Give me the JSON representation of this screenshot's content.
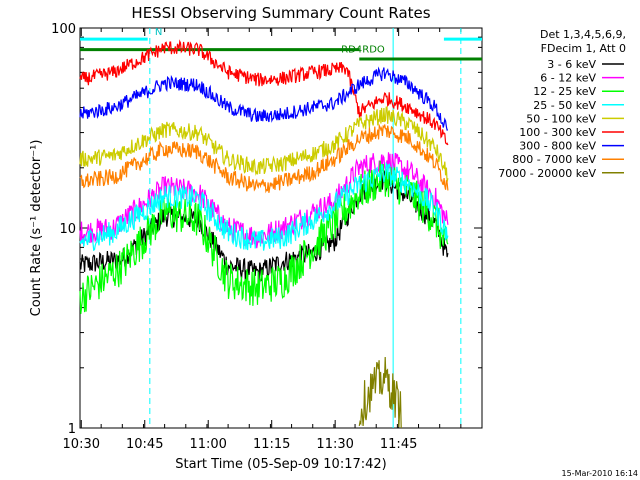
{
  "chart_data": {
    "type": "line",
    "title": "HESSI Observing Summary Count Rates",
    "xlabel": "Start Time (05-Sep-09 10:17:42)",
    "ylabel": "Count Rate (s⁻¹ detector⁻¹)",
    "y_scale": "log",
    "ylim": [
      1,
      100
    ],
    "xlim_minutes": [
      0,
      95
    ],
    "y_tick_labels": [
      "1",
      "10",
      "100"
    ],
    "x_tick_labels": [
      "10:30",
      "10:45",
      "11:00",
      "11:15",
      "11:30",
      "11:45"
    ],
    "x_tick_minutes": [
      30,
      45,
      60,
      75,
      90,
      105
    ],
    "legend": {
      "position": "right",
      "header": [
        "Det 1,3,4,5,6,9,",
        "FDecim 1, Att 0"
      ],
      "entries": [
        {
          "label": "3 - 6 keV",
          "color": "#000000"
        },
        {
          "label": "6 - 12 keV",
          "color": "#ff00ff"
        },
        {
          "label": "12 - 25 keV",
          "color": "#00ff00"
        },
        {
          "label": "25 - 50 keV",
          "color": "#00ffff"
        },
        {
          "label": "50 - 100 keV",
          "color": "#cccc00"
        },
        {
          "label": "100 - 300 keV",
          "color": "#ff0000"
        },
        {
          "label": "300 - 800 keV",
          "color": "#0000ff"
        },
        {
          "label": "800 - 7000 keV",
          "color": "#ff8000"
        },
        {
          "label": "7000 - 20000 keV",
          "color": "#808000"
        }
      ]
    },
    "series": [
      {
        "name": "3 - 6 keV",
        "color": "#000000",
        "noise": 0.45,
        "points": [
          [
            0,
            6.5
          ],
          [
            10,
            7.0
          ],
          [
            20,
            11.5
          ],
          [
            28,
            11.0
          ],
          [
            35,
            6.5
          ],
          [
            42,
            6.0
          ],
          [
            48,
            6.8
          ],
          [
            55,
            7.5
          ],
          [
            60,
            8.5
          ],
          [
            66,
            15.0
          ],
          [
            72,
            17.5
          ],
          [
            78,
            14.0
          ],
          [
            84,
            10.5
          ],
          [
            87,
            7.0
          ]
        ]
      },
      {
        "name": "6 - 12 keV",
        "color": "#ff00ff",
        "noise": 0.5,
        "points": [
          [
            0,
            9.5
          ],
          [
            8,
            10.0
          ],
          [
            20,
            16.0
          ],
          [
            28,
            15.0
          ],
          [
            35,
            10.0
          ],
          [
            42,
            9.0
          ],
          [
            48,
            10.0
          ],
          [
            55,
            12.0
          ],
          [
            60,
            13.5
          ],
          [
            66,
            20.0
          ],
          [
            72,
            22.0
          ],
          [
            78,
            19.0
          ],
          [
            84,
            14.0
          ],
          [
            87,
            10.5
          ]
        ]
      },
      {
        "name": "12 - 25 keV",
        "color": "#00ff00",
        "noise": 0.8,
        "points": [
          [
            0,
            4.5
          ],
          [
            10,
            6.5
          ],
          [
            20,
            12.0
          ],
          [
            28,
            11.0
          ],
          [
            35,
            5.5
          ],
          [
            42,
            5.0
          ],
          [
            48,
            5.5
          ],
          [
            55,
            8.0
          ],
          [
            60,
            10.5
          ],
          [
            66,
            15.0
          ],
          [
            72,
            18.0
          ],
          [
            78,
            15.0
          ],
          [
            84,
            11.0
          ],
          [
            87,
            7.5
          ]
        ]
      },
      {
        "name": "25 - 50 keV",
        "color": "#00ffff",
        "noise": 0.5,
        "points": [
          [
            0,
            8.5
          ],
          [
            8,
            9.5
          ],
          [
            20,
            14.5
          ],
          [
            28,
            14.0
          ],
          [
            35,
            9.5
          ],
          [
            42,
            8.5
          ],
          [
            48,
            9.0
          ],
          [
            55,
            11.0
          ],
          [
            60,
            13.0
          ],
          [
            66,
            16.5
          ],
          [
            72,
            19.0
          ],
          [
            78,
            16.5
          ],
          [
            84,
            12.5
          ],
          [
            87,
            9.0
          ]
        ]
      },
      {
        "name": "50 - 100 keV",
        "color": "#cccc00",
        "noise": 0.35,
        "points": [
          [
            0,
            22.0
          ],
          [
            8,
            23.0
          ],
          [
            20,
            31.0
          ],
          [
            28,
            30.0
          ],
          [
            35,
            22.0
          ],
          [
            42,
            20.0
          ],
          [
            48,
            21.0
          ],
          [
            55,
            23.5
          ],
          [
            60,
            26.0
          ],
          [
            66,
            33.0
          ],
          [
            72,
            37.0
          ],
          [
            78,
            33.0
          ],
          [
            84,
            25.0
          ],
          [
            87,
            18.0
          ]
        ]
      },
      {
        "name": "100 - 300 keV",
        "color": "#ff0000",
        "noise": 0.3,
        "points": [
          [
            0,
            55.0
          ],
          [
            8,
            60.0
          ],
          [
            20,
            80.0
          ],
          [
            28,
            78.0
          ],
          [
            35,
            60.0
          ],
          [
            42,
            55.0
          ],
          [
            48,
            56.0
          ],
          [
            55,
            60.0
          ],
          [
            63,
            63.0
          ],
          [
            66,
            38.0
          ],
          [
            72,
            45.0
          ],
          [
            78,
            40.0
          ],
          [
            84,
            33.0
          ],
          [
            87,
            26.0
          ]
        ]
      },
      {
        "name": "300 - 800 keV",
        "color": "#0000ff",
        "noise": 0.3,
        "points": [
          [
            0,
            37.0
          ],
          [
            8,
            40.0
          ],
          [
            20,
            53.0
          ],
          [
            28,
            52.0
          ],
          [
            35,
            40.0
          ],
          [
            42,
            36.0
          ],
          [
            48,
            37.0
          ],
          [
            55,
            40.0
          ],
          [
            60,
            42.0
          ],
          [
            66,
            52.0
          ],
          [
            72,
            60.0
          ],
          [
            78,
            52.0
          ],
          [
            84,
            40.0
          ],
          [
            87,
            30.0
          ]
        ]
      },
      {
        "name": "800 - 7000 keV",
        "color": "#ff8000",
        "noise": 0.35,
        "points": [
          [
            0,
            17.0
          ],
          [
            8,
            18.0
          ],
          [
            20,
            25.0
          ],
          [
            28,
            24.0
          ],
          [
            35,
            18.0
          ],
          [
            42,
            16.0
          ],
          [
            48,
            17.0
          ],
          [
            55,
            19.0
          ],
          [
            60,
            22.0
          ],
          [
            66,
            28.0
          ],
          [
            72,
            31.0
          ],
          [
            78,
            28.0
          ],
          [
            84,
            21.0
          ],
          [
            87,
            16.0
          ]
        ]
      },
      {
        "name": "7000 - 20000 keV",
        "color": "#808000",
        "noise": 0.9,
        "points": [
          [
            66,
            1.2
          ],
          [
            69,
            1.6
          ],
          [
            72,
            1.8
          ],
          [
            74,
            1.5
          ],
          [
            76,
            1.2
          ]
        ]
      }
    ],
    "annotations": [
      {
        "text": "N",
        "color": "#00c0c0",
        "x_minute": 17
      },
      {
        "text": "RD4",
        "color": "#008000",
        "x_minute": 61
      },
      {
        "text": "RDO",
        "color": "#008000",
        "x_minute": 66
      }
    ],
    "flags": {
      "night_bars": {
        "color": "#00ffff",
        "segments_minutes": [
          [
            0,
            16
          ],
          [
            86,
            95
          ]
        ]
      },
      "decim_bars": {
        "color": "#008000",
        "level": 78,
        "level2": 70,
        "segments_minutes": [
          [
            0,
            66
          ],
          [
            66,
            95
          ]
        ]
      },
      "dashed_verticals_minutes": [
        16.5,
        90
      ],
      "solid_verticals_minutes": [
        74
      ]
    },
    "footer_date": "15-Mar-2010 16:14"
  }
}
